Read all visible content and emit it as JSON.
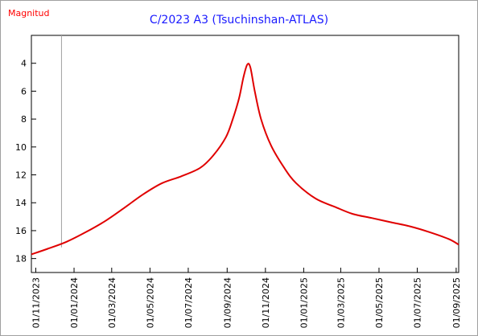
{
  "chart_data": {
    "type": "line",
    "title": "C/2023 A3 (Tsuchinshan-ATLAS)",
    "ylabel": "Magnitud",
    "xlabel": "",
    "y_inverted": true,
    "ylim": [
      19,
      2
    ],
    "yticks": [
      4,
      6,
      8,
      10,
      12,
      14,
      16,
      18
    ],
    "xlim": [
      "2023-10-25",
      "2025-09-05"
    ],
    "xticks": [
      "01/11/2023",
      "01/01/2024",
      "01/03/2024",
      "01/05/2024",
      "01/07/2024",
      "01/09/2024",
      "01/11/2024",
      "01/01/2025",
      "01/03/2025",
      "01/05/2025",
      "01/07/2025",
      "01/09/2025"
    ],
    "reference_line_date": "2023-12-12",
    "grid": false,
    "series": [
      {
        "color": "#e00000",
        "x": [
          "2023-10-25",
          "2023-11-20",
          "2023-12-20",
          "2024-01-20",
          "2024-02-20",
          "2024-03-20",
          "2024-04-20",
          "2024-05-20",
          "2024-06-20",
          "2024-07-20",
          "2024-08-10",
          "2024-08-30",
          "2024-09-10",
          "2024-09-20",
          "2024-09-27",
          "2024-10-03",
          "2024-10-08",
          "2024-10-15",
          "2024-10-25",
          "2024-11-10",
          "2024-12-01",
          "2024-12-20",
          "2025-01-20",
          "2025-02-20",
          "2025-03-20",
          "2025-04-20",
          "2025-05-20",
          "2025-06-20",
          "2025-07-20",
          "2025-08-20",
          "2025-09-05"
        ],
        "values": [
          17.7,
          17.3,
          16.8,
          16.1,
          15.3,
          14.4,
          13.4,
          12.6,
          12.1,
          11.5,
          10.6,
          9.3,
          8.0,
          6.5,
          5.0,
          4.1,
          4.3,
          6.0,
          8.0,
          9.9,
          11.5,
          12.6,
          13.7,
          14.3,
          14.8,
          15.1,
          15.4,
          15.7,
          16.1,
          16.6,
          17.0
        ]
      }
    ]
  }
}
